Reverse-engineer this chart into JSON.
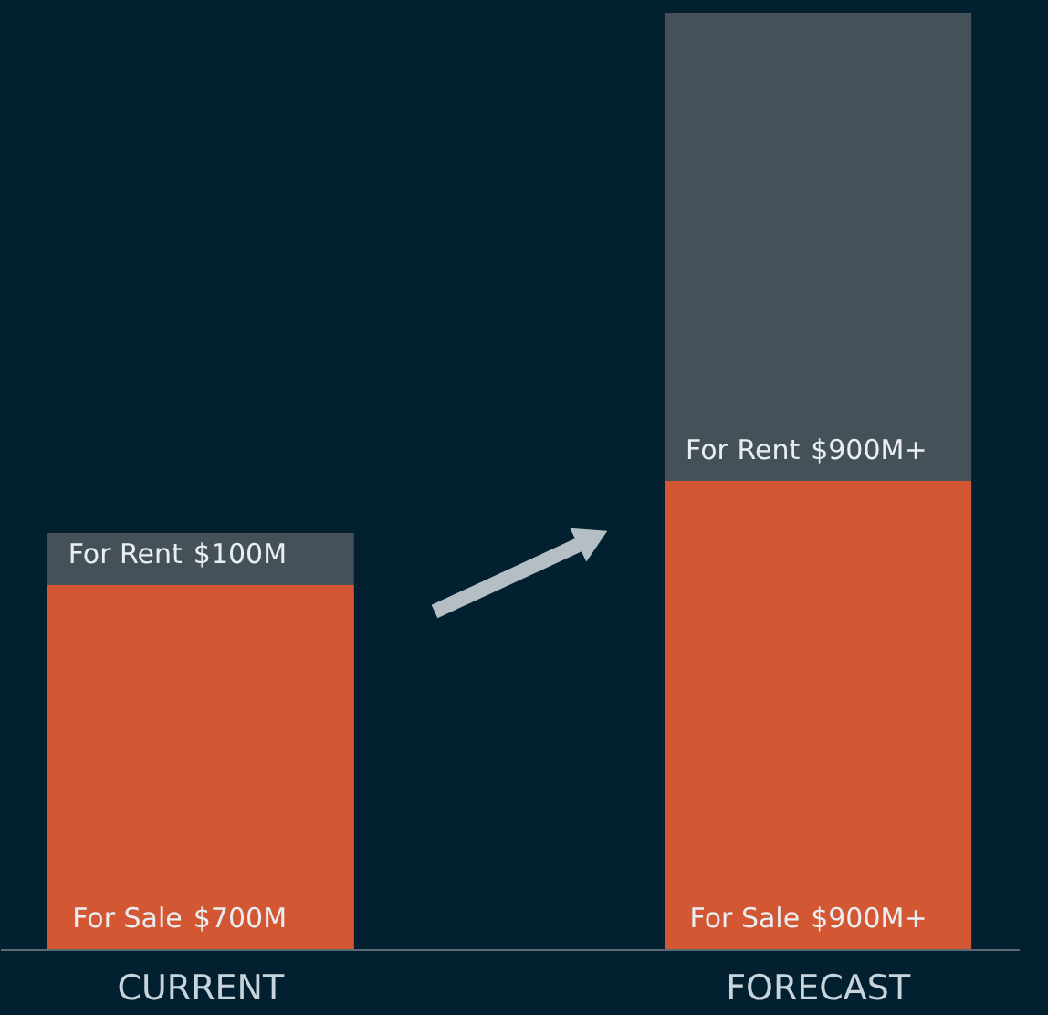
{
  "chart_data": {
    "type": "bar",
    "stacked": true,
    "categories": [
      "CURRENT",
      "FORECAST"
    ],
    "series": [
      {
        "name": "For Sale",
        "color": "#d35733",
        "values": [
          700,
          900
        ],
        "value_labels": [
          "$700M",
          "$900M+"
        ]
      },
      {
        "name": "For Rent",
        "color": "#455159",
        "values": [
          100,
          900
        ],
        "value_labels": [
          "$100M",
          "$900M+"
        ]
      }
    ],
    "tick_labels": "x",
    "grid": false
  }
}
